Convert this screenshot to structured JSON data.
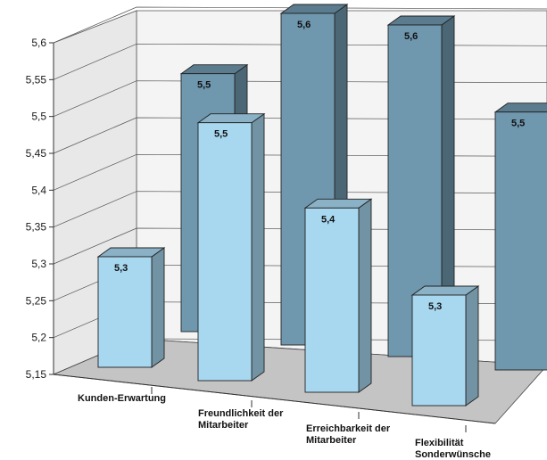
{
  "chart_data": {
    "type": "bar",
    "categories": [
      "Kunden-Erwartung",
      "Freundlichkeit der Mitarbeiter",
      "Erreichbarkeit der Mitarbeiter",
      "Flexibilität Sonderwünsche"
    ],
    "category_lines": [
      [
        "Kunden-Erwartung"
      ],
      [
        "Freundlichkeit der",
        "Mitarbeiter"
      ],
      [
        "Erreichbarkeit der",
        "Mitarbeiter"
      ],
      [
        "Flexibilität",
        "Sonderwünsche"
      ]
    ],
    "series": [
      {
        "values": [
          5.3,
          5.5,
          5.4,
          5.3
        ],
        "labels": [
          "5,3",
          "5,5",
          "5,4",
          "5,3"
        ],
        "color": "#a8d8f0"
      },
      {
        "values": [
          5.5,
          5.6,
          5.6,
          5.5
        ],
        "labels": [
          "5,5",
          "5,6",
          "5,6",
          "5,5"
        ],
        "color": "#6f97ae"
      }
    ],
    "y_ticks": [
      "5,15",
      "5,2",
      "5,25",
      "5,3",
      "5,35",
      "5,4",
      "5,45",
      "5,5",
      "5,55",
      "5,6"
    ],
    "ylim": [
      5.15,
      5.6
    ],
    "grid": true,
    "legend": "none",
    "colors": {
      "wall": "#e8e8e8",
      "floor": "#c4c4c4",
      "front": "#a8d8f0",
      "back": "#6f97ae"
    }
  }
}
